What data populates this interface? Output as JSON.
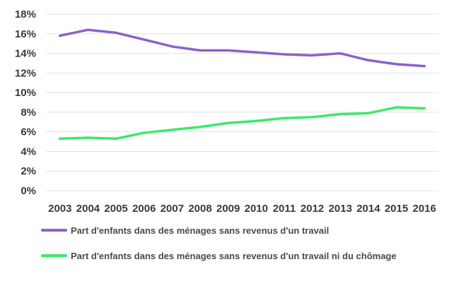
{
  "chart_data": {
    "type": "line",
    "x": [
      "2003",
      "2004",
      "2005",
      "2006",
      "2007",
      "2008",
      "2009",
      "2010",
      "2011",
      "2012",
      "2013",
      "2014",
      "2015",
      "2016"
    ],
    "series": [
      {
        "name": "Part d'enfants dans des ménages sans revenus d'un travail",
        "color": "#8a63c9",
        "values": [
          15.8,
          16.4,
          16.1,
          15.4,
          14.7,
          14.3,
          14.3,
          14.1,
          13.9,
          13.8,
          14.0,
          13.3,
          12.9,
          12.7
        ]
      },
      {
        "name": "Part d'enfants dans des ménages sans revenus d'un travail ni du chômage",
        "color": "#3ee86d",
        "values": [
          5.3,
          5.4,
          5.3,
          5.9,
          6.2,
          6.5,
          6.9,
          7.1,
          7.4,
          7.5,
          7.8,
          7.9,
          8.5,
          8.4
        ]
      }
    ],
    "ylim": [
      0,
      18
    ],
    "yticks": [
      "0%",
      "2%",
      "4%",
      "6%",
      "8%",
      "10%",
      "12%",
      "14%",
      "16%",
      "18%"
    ],
    "grid": true,
    "legend_position": "bottom"
  }
}
